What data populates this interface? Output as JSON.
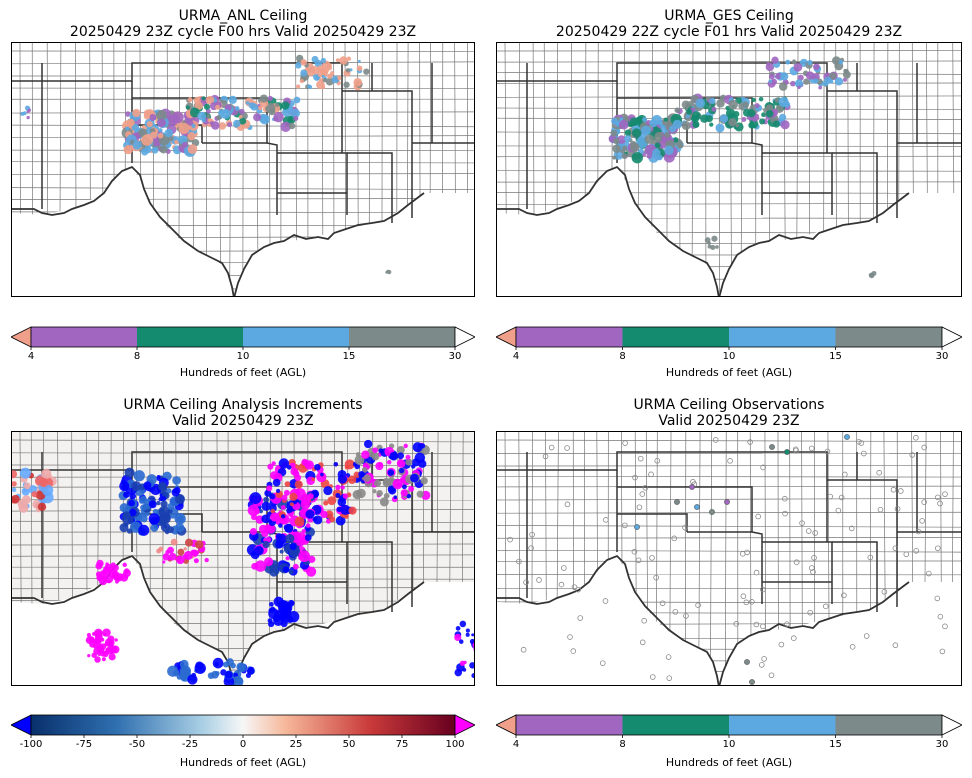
{
  "panels": [
    {
      "id": "anl",
      "title_line1": "URMA_ANL Ceiling",
      "title_line2": "20250429 23Z cycle F00 hrs Valid 20250429 23Z"
    },
    {
      "id": "ges",
      "title_line1": "URMA_GES Ceiling",
      "title_line2": "20250429 22Z cycle F01 hrs Valid 20250429 23Z"
    },
    {
      "id": "inc",
      "title_line1": "URMA Ceiling Analysis Increments",
      "title_line2": "Valid 20250429 23Z"
    },
    {
      "id": "obs",
      "title_line1": "URMA Ceiling Observations",
      "title_line2": "Valid 20250429 23Z"
    }
  ],
  "ceiling_colorbar": {
    "label": "Hundreds of feet (AGL)",
    "ticks": [
      "4",
      "8",
      "10",
      "15",
      "30"
    ],
    "colors": {
      "under": "#f0a08a",
      "b4_8": "#a066c0",
      "b8_10": "#148a6e",
      "b10_15": "#5ca8e0",
      "b15_30": "#7c8a8a",
      "over": "#ffffff"
    }
  },
  "increment_colorbar": {
    "label": "Hundreds of feet (AGL)",
    "ticks": [
      "-100",
      "-75",
      "-50",
      "-25",
      "0",
      "25",
      "50",
      "75",
      "100"
    ],
    "colors": {
      "under": "#0000ff",
      "over": "#ff00ff"
    }
  }
}
